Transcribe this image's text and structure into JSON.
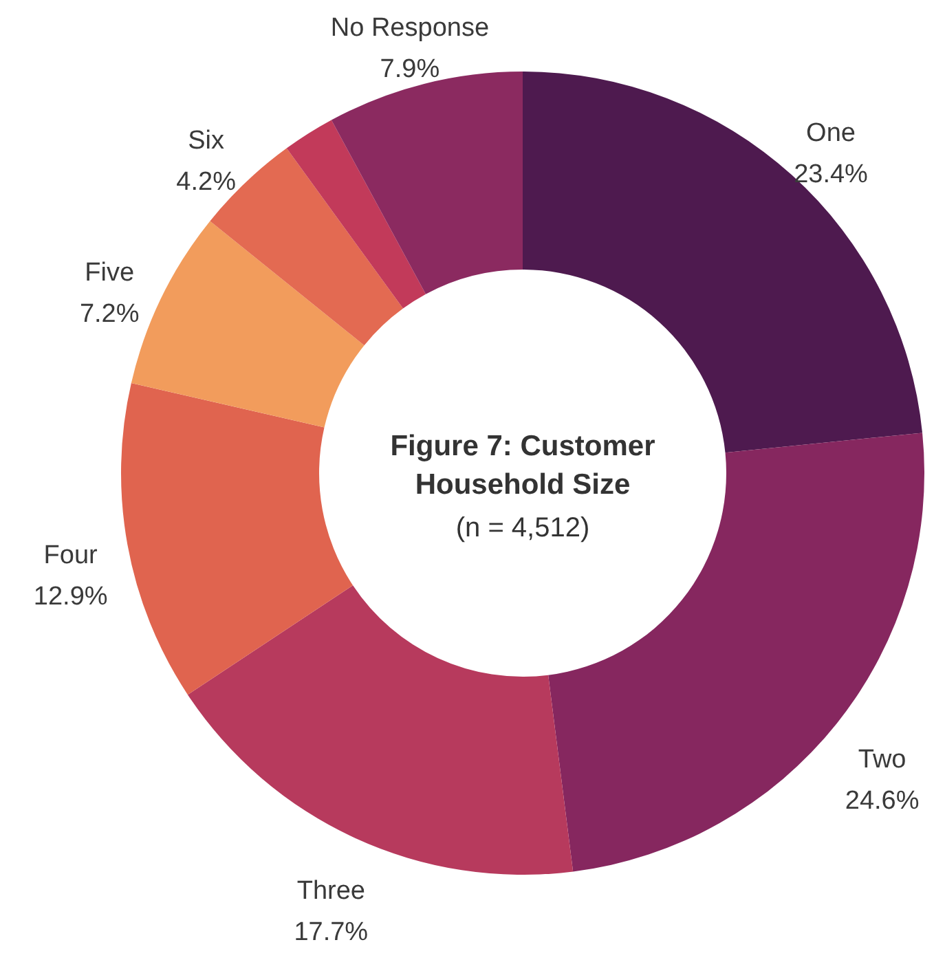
{
  "chart_data": {
    "type": "donut",
    "title": "Figure 7: Customer Household Size",
    "subtitle": "(n = 4,512)",
    "categories": [
      "One",
      "Two",
      "Three",
      "Four",
      "Five",
      "Six",
      null,
      "No Response"
    ],
    "values": [
      23.4,
      24.6,
      17.7,
      12.9,
      7.2,
      4.2,
      2.1,
      7.9
    ],
    "value_labels": [
      "23.4%",
      "24.6%",
      "17.7%",
      "12.9%",
      "7.2%",
      "4.2%",
      null,
      "7.9%"
    ],
    "colors": [
      "#4e1a4f",
      "#86275f",
      "#b73a5d",
      "#e0644f",
      "#f29c5c",
      "#e36a52",
      "#c23a5a",
      "#8b2a60"
    ]
  }
}
